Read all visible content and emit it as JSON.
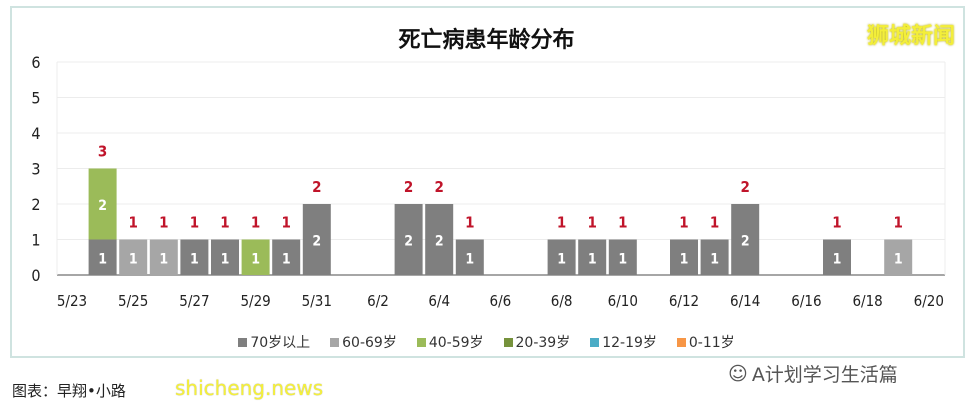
{
  "chart_data": {
    "type": "bar",
    "stacked": true,
    "title": "死亡病患年龄分布",
    "xlabel": "",
    "ylabel": "",
    "ylim": [
      0,
      6
    ],
    "yticks": [
      "0",
      "1",
      "2",
      "3",
      "4",
      "5",
      "6"
    ],
    "grid": true,
    "legend_position": "bottom",
    "categories": [
      "5/23",
      "5/24",
      "5/25",
      "5/26",
      "5/27",
      "5/28",
      "5/29",
      "5/30",
      "5/31",
      "6/1",
      "6/2",
      "6/3",
      "6/4",
      "6/5",
      "6/6",
      "6/7",
      "6/8",
      "6/9",
      "6/10",
      "6/11",
      "6/12",
      "6/13",
      "6/14",
      "6/15",
      "6/16",
      "6/17",
      "6/18",
      "6/19",
      "6/20"
    ],
    "xtick_labels": [
      "5/23",
      "5/25",
      "5/27",
      "5/29",
      "5/31",
      "6/2",
      "6/4",
      "6/6",
      "6/8",
      "6/10",
      "6/12",
      "6/14",
      "6/16",
      "6/18",
      "6/20"
    ],
    "series": [
      {
        "name": "70岁以上",
        "color": "#7f7f7f",
        "values": [
          0,
          1,
          0,
          0,
          1,
          1,
          0,
          1,
          2,
          0,
          0,
          2,
          2,
          1,
          0,
          0,
          1,
          1,
          1,
          0,
          1,
          1,
          2,
          0,
          0,
          1,
          0,
          0,
          0
        ]
      },
      {
        "name": "60-69岁",
        "color": "#a6a6a6",
        "values": [
          0,
          0,
          1,
          1,
          0,
          0,
          0,
          0,
          0,
          0,
          0,
          0,
          0,
          0,
          0,
          0,
          0,
          0,
          0,
          0,
          0,
          0,
          0,
          0,
          0,
          0,
          0,
          1,
          0
        ]
      },
      {
        "name": "40-59岁",
        "color": "#9bbb59",
        "values": [
          0,
          2,
          0,
          0,
          0,
          0,
          1,
          0,
          0,
          0,
          0,
          0,
          0,
          0,
          0,
          0,
          0,
          0,
          0,
          0,
          0,
          0,
          0,
          0,
          0,
          0,
          0,
          0,
          0
        ]
      },
      {
        "name": "20-39岁",
        "color": "#76923c",
        "values": [
          0,
          0,
          0,
          0,
          0,
          0,
          0,
          0,
          0,
          0,
          0,
          0,
          0,
          0,
          0,
          0,
          0,
          0,
          0,
          0,
          0,
          0,
          0,
          0,
          0,
          0,
          0,
          0,
          0
        ]
      },
      {
        "name": "12-19岁",
        "color": "#4bacc6",
        "values": [
          0,
          0,
          0,
          0,
          0,
          0,
          0,
          0,
          0,
          0,
          0,
          0,
          0,
          0,
          0,
          0,
          0,
          0,
          0,
          0,
          0,
          0,
          0,
          0,
          0,
          0,
          0,
          0,
          0
        ]
      },
      {
        "name": "0-11岁",
        "color": "#f79646",
        "values": [
          0,
          0,
          0,
          0,
          0,
          0,
          0,
          0,
          0,
          0,
          0,
          0,
          0,
          0,
          0,
          0,
          0,
          0,
          0,
          0,
          0,
          0,
          0,
          0,
          0,
          0,
          0,
          0,
          0
        ]
      }
    ],
    "total_label_color": "#c0142a"
  },
  "watermarks": {
    "top_right": "狮城新闻",
    "bottom_left": "shicheng.news",
    "account": "A计划学习生活篇",
    "account_icon": "wechat-icon"
  },
  "credit": "图表：早翔•小路"
}
